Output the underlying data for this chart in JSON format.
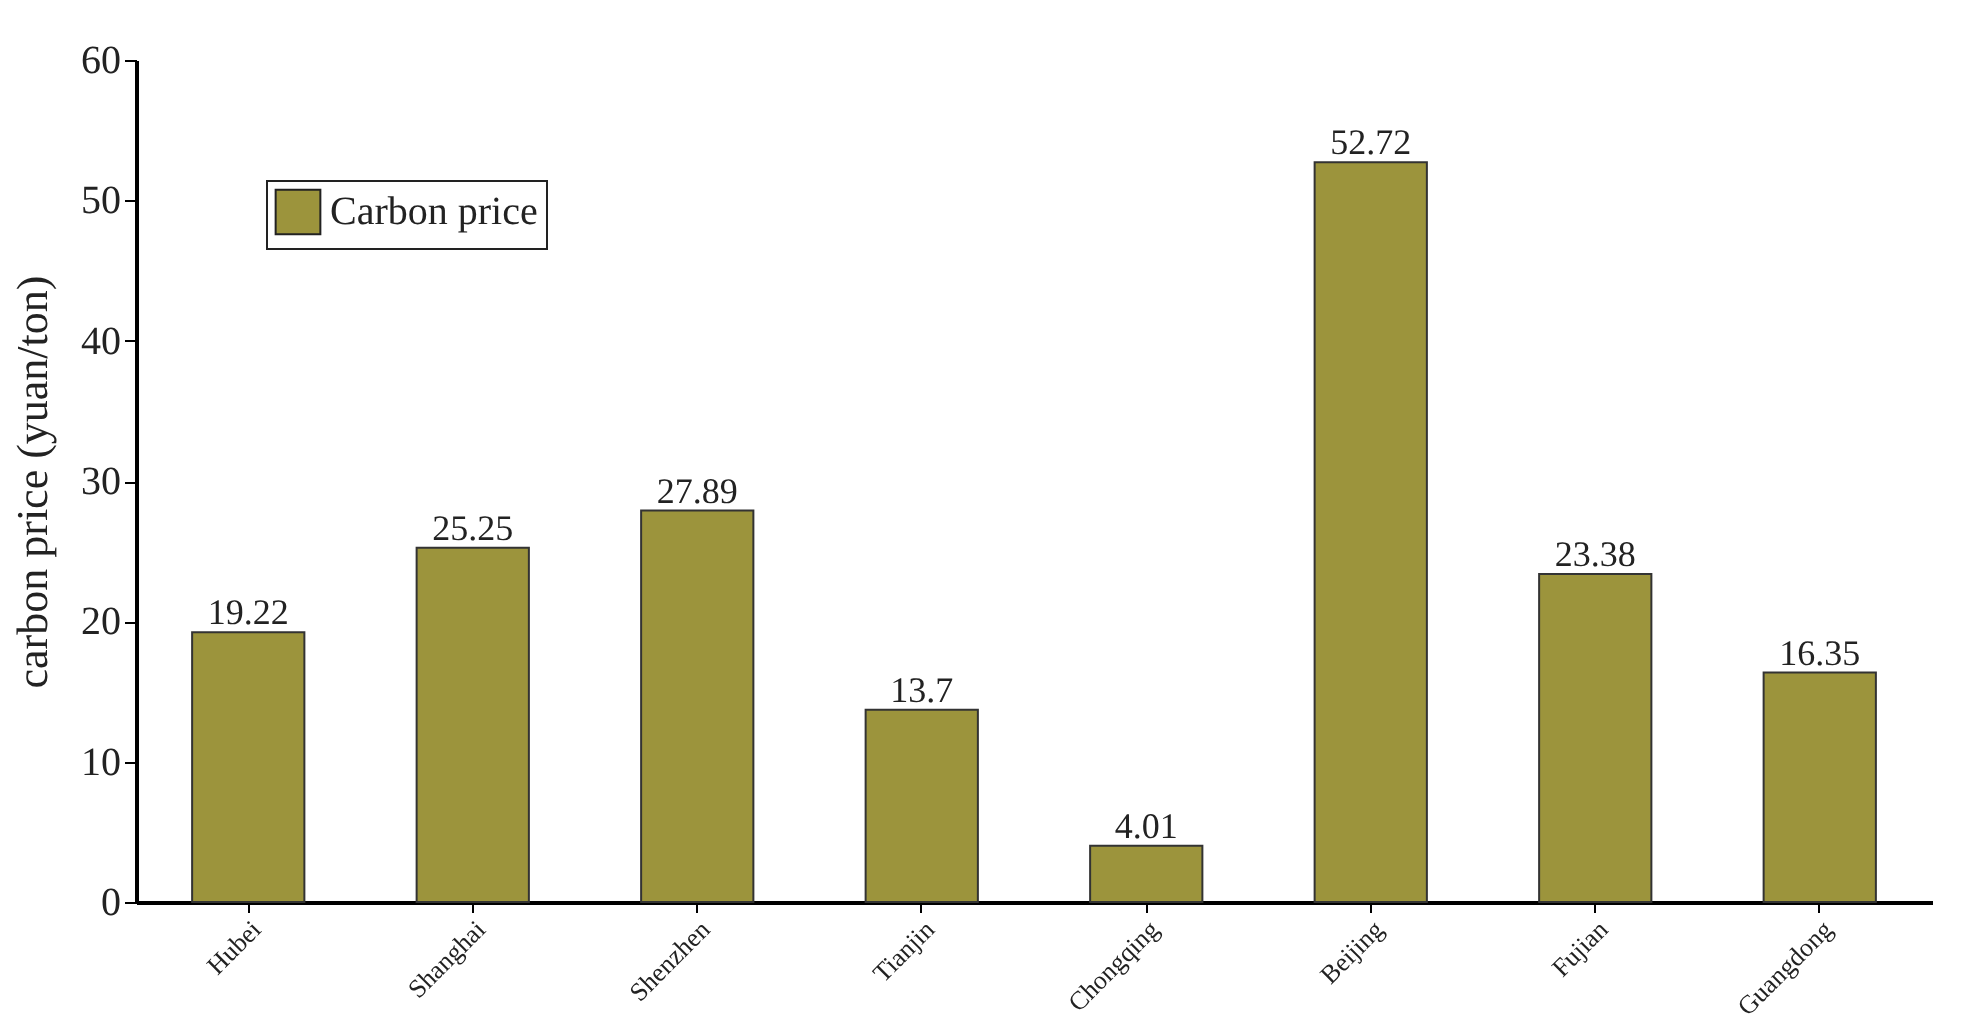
{
  "chart_data": {
    "type": "bar",
    "ylabel": "carbon price (yuan/ton)",
    "categories": [
      "Hubei",
      "Shanghai",
      "Shenzhen",
      "Tianjin",
      "Chongqing",
      "Beijing",
      "Fujian",
      "Guangdong"
    ],
    "series": [
      {
        "name": "Carbon price",
        "color": "#9c943c",
        "values": [
          19.22,
          25.25,
          27.89,
          13.7,
          4.01,
          52.72,
          23.38,
          16.35
        ]
      }
    ],
    "ylim": [
      0,
      60
    ],
    "yticks": [
      0,
      10,
      20,
      30,
      40,
      50,
      60
    ],
    "grid": false,
    "legend": "top left",
    "data_labels": true
  }
}
